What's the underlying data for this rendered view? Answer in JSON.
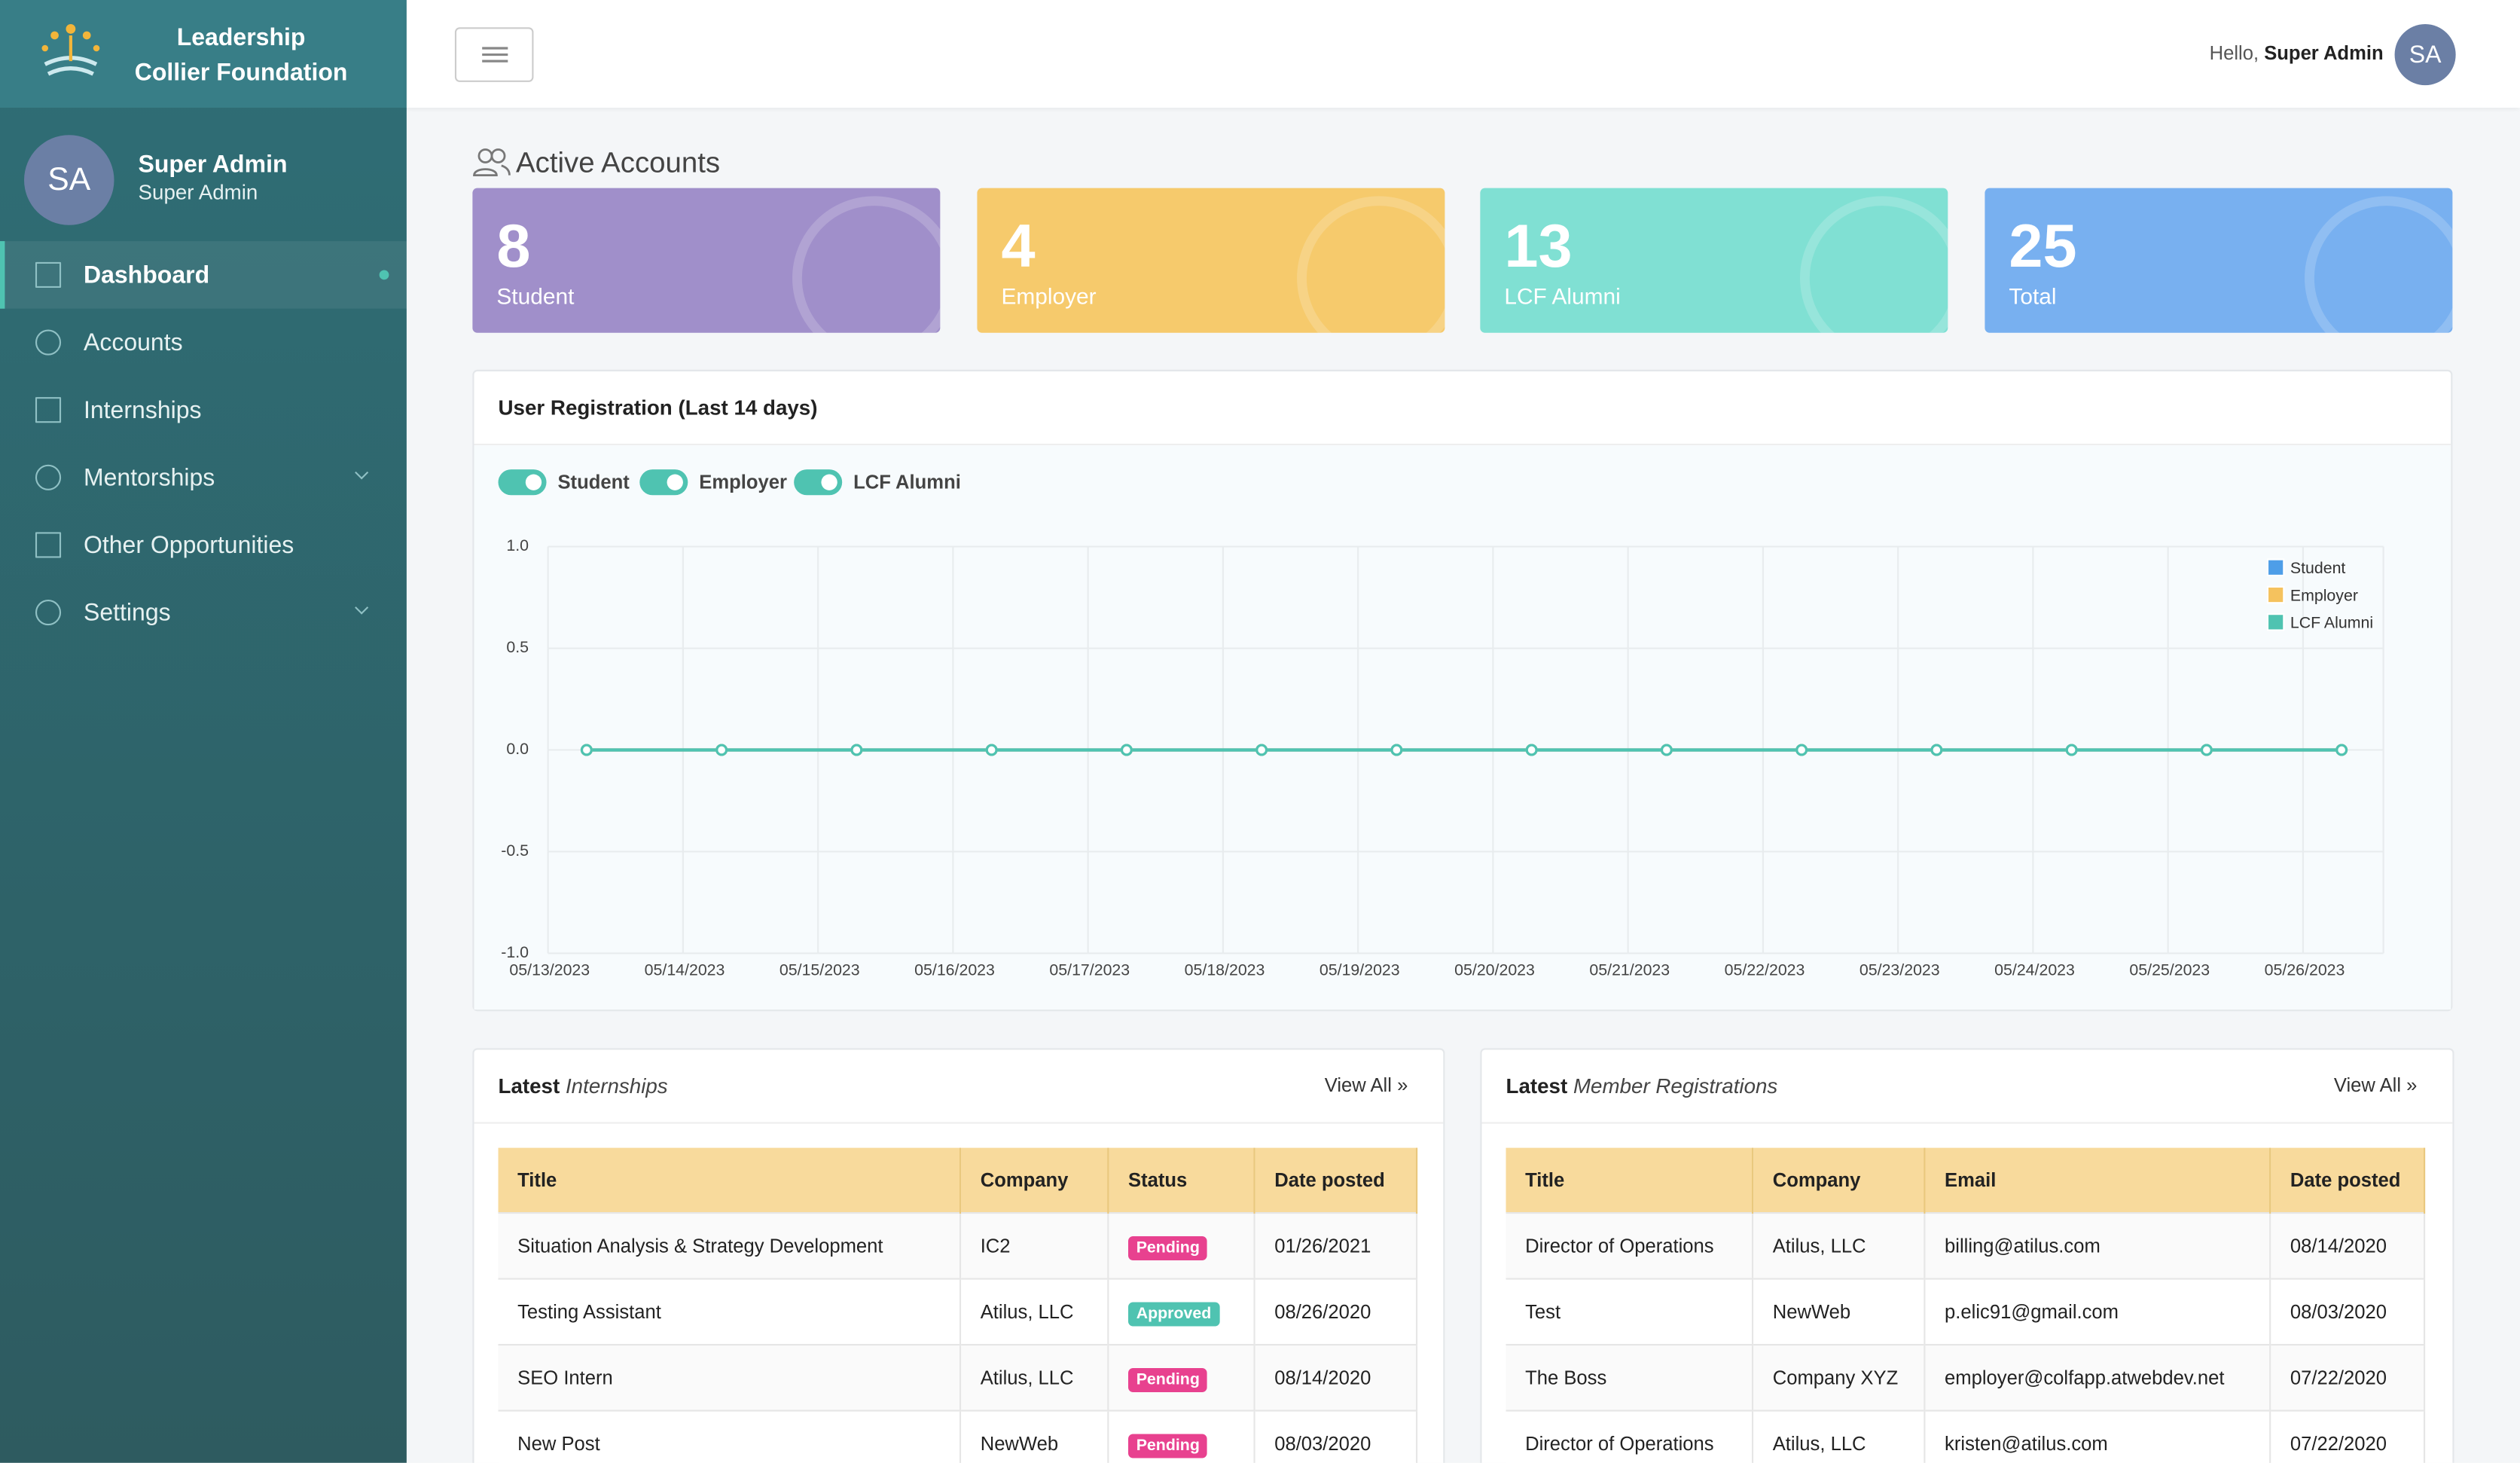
{
  "header": {
    "brand": [
      "Leadership",
      "Collier Foundation"
    ],
    "greeting": "Hello,",
    "user": "Super Admin",
    "avatar": "SA"
  },
  "sidebar": {
    "avatar": "SA",
    "name": "Super Admin",
    "role": "Super Admin",
    "nav": [
      {
        "label": "Dashboard",
        "active": true
      },
      {
        "label": "Accounts"
      },
      {
        "label": "Internships"
      },
      {
        "label": "Mentorships",
        "submenu": true
      },
      {
        "label": "Other Opportunities"
      },
      {
        "label": "Settings",
        "submenu": true
      }
    ]
  },
  "stats": {
    "title": "Active Accounts",
    "cards": [
      {
        "value": "8",
        "label": "Student",
        "color": "#a08fca"
      },
      {
        "value": "4",
        "label": "Employer",
        "color": "#f6ca6c"
      },
      {
        "value": "13",
        "label": "LCF Alumni",
        "color": "#80e0d3"
      },
      {
        "value": "25",
        "label": "Total",
        "color": "#78b0f0"
      }
    ]
  },
  "chart_data": {
    "type": "line",
    "title": "User Registration (Last 14 days)",
    "categories": [
      "05/13/2023",
      "05/14/2023",
      "05/15/2023",
      "05/16/2023",
      "05/17/2023",
      "05/18/2023",
      "05/19/2023",
      "05/20/2023",
      "05/21/2023",
      "05/22/2023",
      "05/23/2023",
      "05/24/2023",
      "05/25/2023",
      "05/26/2023"
    ],
    "series": [
      {
        "name": "Student",
        "color": "#4e9ee8",
        "values": [
          0,
          0,
          0,
          0,
          0,
          0,
          0,
          0,
          0,
          0,
          0,
          0,
          0,
          0
        ]
      },
      {
        "name": "Employer",
        "color": "#f5c25e",
        "values": [
          0,
          0,
          0,
          0,
          0,
          0,
          0,
          0,
          0,
          0,
          0,
          0,
          0,
          0
        ]
      },
      {
        "name": "LCF Alumni",
        "color": "#4fc3b1",
        "values": [
          0,
          0,
          0,
          0,
          0,
          0,
          0,
          0,
          0,
          0,
          0,
          0,
          0,
          0
        ]
      }
    ],
    "ylim": [
      -1,
      1
    ],
    "yticks": [
      {
        "value": 1,
        "label": "1.0"
      },
      0.5,
      {
        "value": 0,
        "label": "0.0"
      },
      -0.5,
      {
        "value": -1,
        "label": "-1.0"
      }
    ],
    "grid": true,
    "legend": "top-right"
  },
  "internships": {
    "title": "Latest",
    "subtitle": "Internships",
    "link": "View All",
    "columns": [
      "Title",
      "Company",
      "Status",
      "Date posted"
    ],
    "rows": [
      [
        "Situation Analysis & Strategy Development",
        "IC2",
        {
          "text": "Pending",
          "color": "#e8418f"
        },
        "01/26/2021"
      ],
      [
        "Testing Assistant",
        "Atilus, LLC",
        {
          "text": "Approved",
          "color": "#4fc3b1"
        },
        "08/26/2020"
      ],
      [
        "SEO Intern",
        "Atilus, LLC",
        {
          "text": "Pending",
          "color": "#e8418f"
        },
        "08/14/2020"
      ],
      [
        "New Post",
        "NewWeb",
        {
          "text": "Pending",
          "color": "#e8418f"
        },
        "08/03/2020"
      ]
    ]
  },
  "members": {
    "title": "Latest",
    "subtitle": "Member Registrations",
    "link": "View All",
    "columns": [
      "Title",
      "Company",
      "Email",
      "Date posted"
    ],
    "rows": [
      [
        "Director of Operations",
        "Atilus, LLC",
        "billing@atilus.com",
        "08/14/2020"
      ],
      [
        "Test",
        "NewWeb",
        "p.elic91@gmail.com",
        "08/03/2020"
      ],
      [
        "The Boss",
        "Company XYZ",
        "employer@colfapp.atwebdev.net",
        "07/22/2020"
      ],
      [
        "Director of Operations",
        "Atilus, LLC",
        "kristen@atilus.com",
        "07/22/2020"
      ]
    ]
  }
}
